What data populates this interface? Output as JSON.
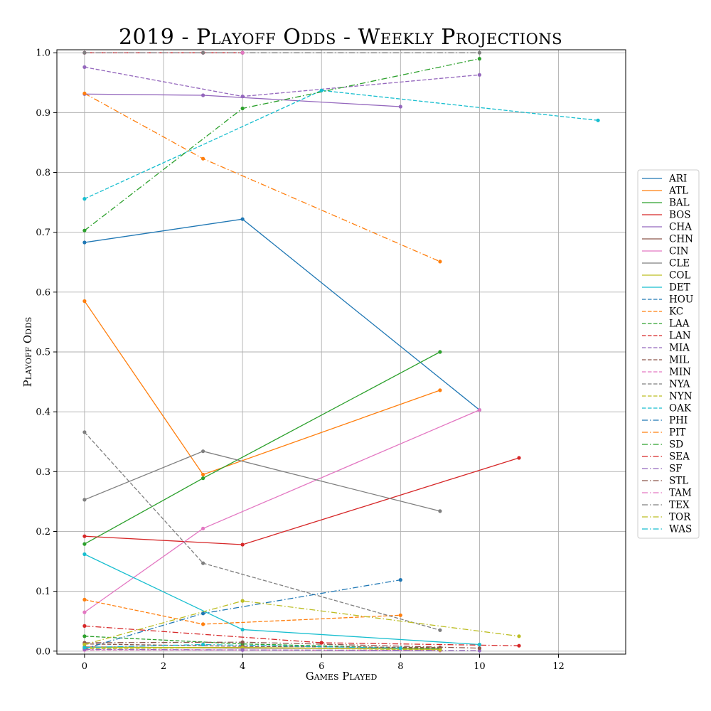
{
  "chart_data": {
    "type": "line",
    "title": "2019 - Playoff Odds - Weekly Projections",
    "xlabel": "Games Played",
    "ylabel": "Playoff Odds",
    "xlim": [
      -0.7,
      13.7
    ],
    "ylim": [
      -0.005,
      1.005
    ],
    "xticks": [
      "0",
      "2",
      "4",
      "6",
      "8",
      "10",
      "12"
    ],
    "yticks": [
      "0.0",
      "0.1",
      "0.2",
      "0.3",
      "0.4",
      "0.5",
      "0.6",
      "0.7",
      "0.8",
      "0.9",
      "1.0"
    ],
    "grid": true,
    "legend_position": "right",
    "series": [
      {
        "name": "ARI",
        "color": "#1f77b4",
        "style": "solid",
        "points": [
          [
            0,
            0.683
          ],
          [
            4,
            0.722
          ],
          [
            10,
            0.403
          ]
        ]
      },
      {
        "name": "ATL",
        "color": "#ff7f0e",
        "style": "solid",
        "points": [
          [
            0,
            0.585
          ],
          [
            3,
            0.295
          ],
          [
            9,
            0.436
          ]
        ]
      },
      {
        "name": "BAL",
        "color": "#2ca02c",
        "style": "solid",
        "points": [
          [
            0,
            0.179
          ],
          [
            3,
            0.289
          ],
          [
            9,
            0.5
          ]
        ]
      },
      {
        "name": "BOS",
        "color": "#d62728",
        "style": "solid",
        "points": [
          [
            0,
            0.192
          ],
          [
            4,
            0.178
          ],
          [
            11,
            0.323
          ]
        ]
      },
      {
        "name": "CHA",
        "color": "#9467bd",
        "style": "solid",
        "points": [
          [
            0,
            0.931
          ],
          [
            3,
            0.929
          ],
          [
            8,
            0.91
          ]
        ]
      },
      {
        "name": "CHN",
        "color": "#8c564b",
        "style": "solid",
        "points": [
          [
            0,
            0.007
          ],
          [
            4,
            0.005
          ],
          [
            9,
            0.004
          ]
        ]
      },
      {
        "name": "CIN",
        "color": "#e377c2",
        "style": "solid",
        "points": [
          [
            0,
            0.065
          ],
          [
            3,
            0.205
          ],
          [
            10,
            0.403
          ]
        ]
      },
      {
        "name": "CLE",
        "color": "#7f7f7f",
        "style": "solid",
        "points": [
          [
            0,
            0.253
          ],
          [
            3,
            0.334
          ],
          [
            9,
            0.234
          ]
        ]
      },
      {
        "name": "COL",
        "color": "#bcbd22",
        "style": "solid",
        "points": [
          [
            0,
            0.006
          ],
          [
            4,
            0.006
          ],
          [
            9,
            0.003
          ]
        ]
      },
      {
        "name": "DET",
        "color": "#17becf",
        "style": "solid",
        "points": [
          [
            0,
            0.162
          ],
          [
            4,
            0.036
          ],
          [
            10,
            0.011
          ]
        ]
      },
      {
        "name": "HOU",
        "color": "#1f77b4",
        "style": "dashed",
        "points": [
          [
            0,
            1.0
          ],
          [
            3,
            1.0
          ],
          [
            4,
            1.0
          ]
        ]
      },
      {
        "name": "KC",
        "color": "#ff7f0e",
        "style": "dashed",
        "points": [
          [
            0,
            0.086
          ],
          [
            3,
            0.045
          ],
          [
            8,
            0.06
          ]
        ]
      },
      {
        "name": "LAA",
        "color": "#2ca02c",
        "style": "dashed",
        "points": [
          [
            0,
            0.025
          ],
          [
            4,
            0.012
          ],
          [
            9,
            0.004
          ]
        ]
      },
      {
        "name": "LAN",
        "color": "#d62728",
        "style": "dashed",
        "points": [
          [
            0,
            1.0
          ],
          [
            3,
            1.0
          ],
          [
            4,
            1.0
          ]
        ]
      },
      {
        "name": "MIA",
        "color": "#9467bd",
        "style": "dashed",
        "points": [
          [
            0,
            0.976
          ],
          [
            4,
            0.927
          ],
          [
            10,
            0.963
          ]
        ]
      },
      {
        "name": "MIL",
        "color": "#8c564b",
        "style": "dashed",
        "points": [
          [
            0,
            0.012
          ],
          [
            4,
            0.008
          ],
          [
            9,
            0.006
          ]
        ]
      },
      {
        "name": "MIN",
        "color": "#e377c2",
        "style": "dashed",
        "points": [
          [
            0,
            0.002
          ],
          [
            4,
            0.002
          ],
          [
            9,
            0.001
          ]
        ]
      },
      {
        "name": "NYA",
        "color": "#7f7f7f",
        "style": "dashed",
        "points": [
          [
            0,
            0.366
          ],
          [
            3,
            0.147
          ],
          [
            9,
            0.035
          ]
        ]
      },
      {
        "name": "NYN",
        "color": "#bcbd22",
        "style": "dashed",
        "points": [
          [
            0,
            0.004
          ],
          [
            4,
            0.006
          ],
          [
            9,
            0.002
          ]
        ]
      },
      {
        "name": "OAK",
        "color": "#17becf",
        "style": "dashed",
        "points": [
          [
            0,
            0.756
          ],
          [
            6,
            0.937
          ],
          [
            13,
            0.887
          ]
        ]
      },
      {
        "name": "PHI",
        "color": "#1f77b4",
        "style": "dashdot",
        "points": [
          [
            0,
            0.004
          ],
          [
            3,
            0.063
          ],
          [
            8,
            0.119
          ]
        ]
      },
      {
        "name": "PIT",
        "color": "#ff7f0e",
        "style": "dashdot",
        "points": [
          [
            0,
            0.932
          ],
          [
            3,
            0.823
          ],
          [
            9,
            0.651
          ]
        ]
      },
      {
        "name": "SD",
        "color": "#2ca02c",
        "style": "dashdot",
        "points": [
          [
            0,
            0.703
          ],
          [
            4,
            0.907
          ],
          [
            10,
            0.99
          ]
        ]
      },
      {
        "name": "SEA",
        "color": "#d62728",
        "style": "dashdot",
        "points": [
          [
            0,
            0.042
          ],
          [
            6,
            0.014
          ],
          [
            11,
            0.009
          ]
        ]
      },
      {
        "name": "SF",
        "color": "#9467bd",
        "style": "dashdot",
        "points": [
          [
            0,
            0.003
          ],
          [
            4,
            0.002
          ],
          [
            10,
            0.001
          ]
        ]
      },
      {
        "name": "STL",
        "color": "#8c564b",
        "style": "dashdot",
        "points": [
          [
            0,
            0.014
          ],
          [
            4,
            0.015
          ],
          [
            10,
            0.005
          ]
        ]
      },
      {
        "name": "TAM",
        "color": "#e377c2",
        "style": "dashdot",
        "points": [
          [
            0,
            1.0
          ],
          [
            3,
            1.0
          ],
          [
            4,
            1.0
          ]
        ]
      },
      {
        "name": "TEX",
        "color": "#7f7f7f",
        "style": "dashdot",
        "points": [
          [
            0,
            1.0
          ],
          [
            3,
            1.0
          ],
          [
            10,
            1.0
          ]
        ]
      },
      {
        "name": "TOR",
        "color": "#bcbd22",
        "style": "dashdot",
        "points": [
          [
            0,
            0.011
          ],
          [
            4,
            0.084
          ],
          [
            11,
            0.025
          ]
        ]
      },
      {
        "name": "WAS",
        "color": "#17becf",
        "style": "dashdot",
        "points": [
          [
            0,
            0.006
          ],
          [
            3,
            0.011
          ],
          [
            8,
            0.005
          ]
        ]
      }
    ]
  }
}
